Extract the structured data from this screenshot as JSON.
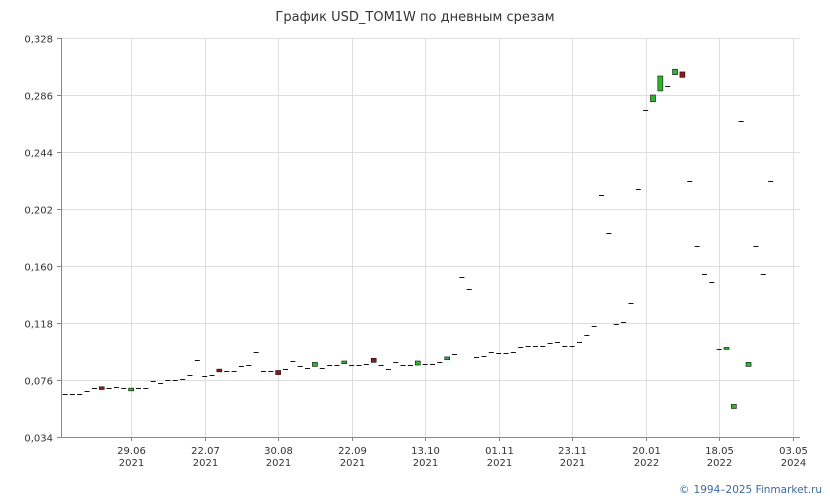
{
  "title": "График USD_TOM1W по дневным срезам",
  "footer": {
    "copyright_symbol": "©",
    "copyright_text": "1994–2025 Finmarket.ru"
  },
  "colors": {
    "up": "#2db52d",
    "down": "#8b1a1a",
    "flat": "#111111",
    "grid": "#dddddd",
    "axis": "#888888"
  },
  "chart_data": {
    "type": "candlestick",
    "title": "График USD_TOM1W по дневным срезам",
    "xlabel": "",
    "ylabel": "",
    "ylim": [
      0.034,
      0.328
    ],
    "yticks": [
      "0,328",
      "0,286",
      "0,244",
      "0,202",
      "0,160",
      "0,118",
      "0,076",
      "0,034"
    ],
    "ytick_values": [
      0.328,
      0.286,
      0.244,
      0.202,
      0.16,
      0.118,
      0.076,
      0.034
    ],
    "xticks": [
      {
        "date": "29.06",
        "year": "2021",
        "index": 9
      },
      {
        "date": "22.07",
        "year": "2021",
        "index": 19
      },
      {
        "date": "30.08",
        "year": "2021",
        "index": 29
      },
      {
        "date": "22.09",
        "year": "2021",
        "index": 39
      },
      {
        "date": "13.10",
        "year": "2021",
        "index": 49
      },
      {
        "date": "01.11",
        "year": "2021",
        "index": 59
      },
      {
        "date": "23.11",
        "year": "2021",
        "index": 69
      },
      {
        "date": "20.01",
        "year": "2022",
        "index": 79
      },
      {
        "date": "18.05",
        "year": "2022",
        "index": 89
      },
      {
        "date": "03.05",
        "year": "2024",
        "index": 99
      }
    ],
    "grid": true,
    "series": [
      {
        "values": [
          [
            0.066,
            0.066
          ],
          [
            0.066,
            0.066
          ],
          [
            0.066,
            0.066
          ],
          [
            0.068,
            0.068
          ],
          [
            0.07,
            0.07
          ],
          [
            0.071,
            0.069
          ],
          [
            0.07,
            0.07
          ],
          [
            0.071,
            0.071
          ],
          [
            0.07,
            0.07
          ],
          [
            0.068,
            0.07
          ],
          [
            0.07,
            0.07
          ],
          [
            0.07,
            0.07
          ],
          [
            0.075,
            0.075
          ],
          [
            0.074,
            0.074
          ],
          [
            0.076,
            0.076
          ],
          [
            0.076,
            0.076
          ],
          [
            0.077,
            0.077
          ],
          [
            0.08,
            0.08
          ],
          [
            0.091,
            0.091
          ],
          [
            0.079,
            0.079
          ],
          [
            0.08,
            0.08
          ],
          [
            0.084,
            0.082
          ],
          [
            0.083,
            0.083
          ],
          [
            0.083,
            0.083
          ],
          [
            0.086,
            0.086
          ],
          [
            0.087,
            0.087
          ],
          [
            0.097,
            0.097
          ],
          [
            0.083,
            0.083
          ],
          [
            0.083,
            0.083
          ],
          [
            0.083,
            0.08
          ],
          [
            0.084,
            0.084
          ],
          [
            0.09,
            0.09
          ],
          [
            0.086,
            0.086
          ],
          [
            0.085,
            0.085
          ],
          [
            0.086,
            0.089
          ],
          [
            0.085,
            0.085
          ],
          [
            0.087,
            0.087
          ],
          [
            0.087,
            0.087
          ],
          [
            0.088,
            0.09
          ],
          [
            0.087,
            0.087
          ],
          [
            0.087,
            0.087
          ],
          [
            0.088,
            0.088
          ],
          [
            0.092,
            0.089
          ],
          [
            0.087,
            0.087
          ],
          [
            0.084,
            0.084
          ],
          [
            0.089,
            0.089
          ],
          [
            0.087,
            0.087
          ],
          [
            0.087,
            0.087
          ],
          [
            0.087,
            0.09
          ],
          [
            0.088,
            0.088
          ],
          [
            0.088,
            0.088
          ],
          [
            0.089,
            0.089
          ],
          [
            0.091,
            0.093
          ],
          [
            0.095,
            0.095
          ],
          [
            0.152,
            0.152
          ],
          [
            0.143,
            0.143
          ],
          [
            0.093,
            0.093
          ],
          [
            0.094,
            0.094
          ],
          [
            0.097,
            0.097
          ],
          [
            0.096,
            0.096
          ],
          [
            0.096,
            0.096
          ],
          [
            0.097,
            0.097
          ],
          [
            0.1,
            0.1
          ],
          [
            0.101,
            0.101
          ],
          [
            0.101,
            0.101
          ],
          [
            0.101,
            0.101
          ],
          [
            0.103,
            0.103
          ],
          [
            0.104,
            0.104
          ],
          [
            0.101,
            0.101
          ],
          [
            0.101,
            0.101
          ],
          [
            0.104,
            0.104
          ],
          [
            0.109,
            0.109
          ],
          [
            0.116,
            0.116
          ],
          [
            0.212,
            0.212
          ],
          [
            0.184,
            0.184
          ],
          [
            0.117,
            0.117
          ],
          [
            0.119,
            0.119
          ],
          [
            0.133,
            0.133
          ],
          [
            0.217,
            0.217
          ],
          [
            0.275,
            0.275
          ],
          [
            0.281,
            0.286
          ],
          [
            0.289,
            0.3
          ],
          [
            0.293,
            0.293
          ],
          [
            0.301,
            0.305
          ],
          [
            0.303,
            0.299
          ],
          [
            0.223,
            0.223
          ],
          [
            0.175,
            0.175
          ],
          [
            0.154,
            0.154
          ],
          [
            0.148,
            0.148
          ],
          [
            0.099,
            0.099
          ],
          [
            0.099,
            0.1
          ],
          [
            0.055,
            0.058
          ],
          [
            0.267,
            0.267
          ],
          [
            0.086,
            0.089
          ],
          [
            0.175,
            0.175
          ],
          [
            0.154,
            0.154
          ],
          [
            0.223,
            0.223
          ]
        ]
      }
    ]
  }
}
